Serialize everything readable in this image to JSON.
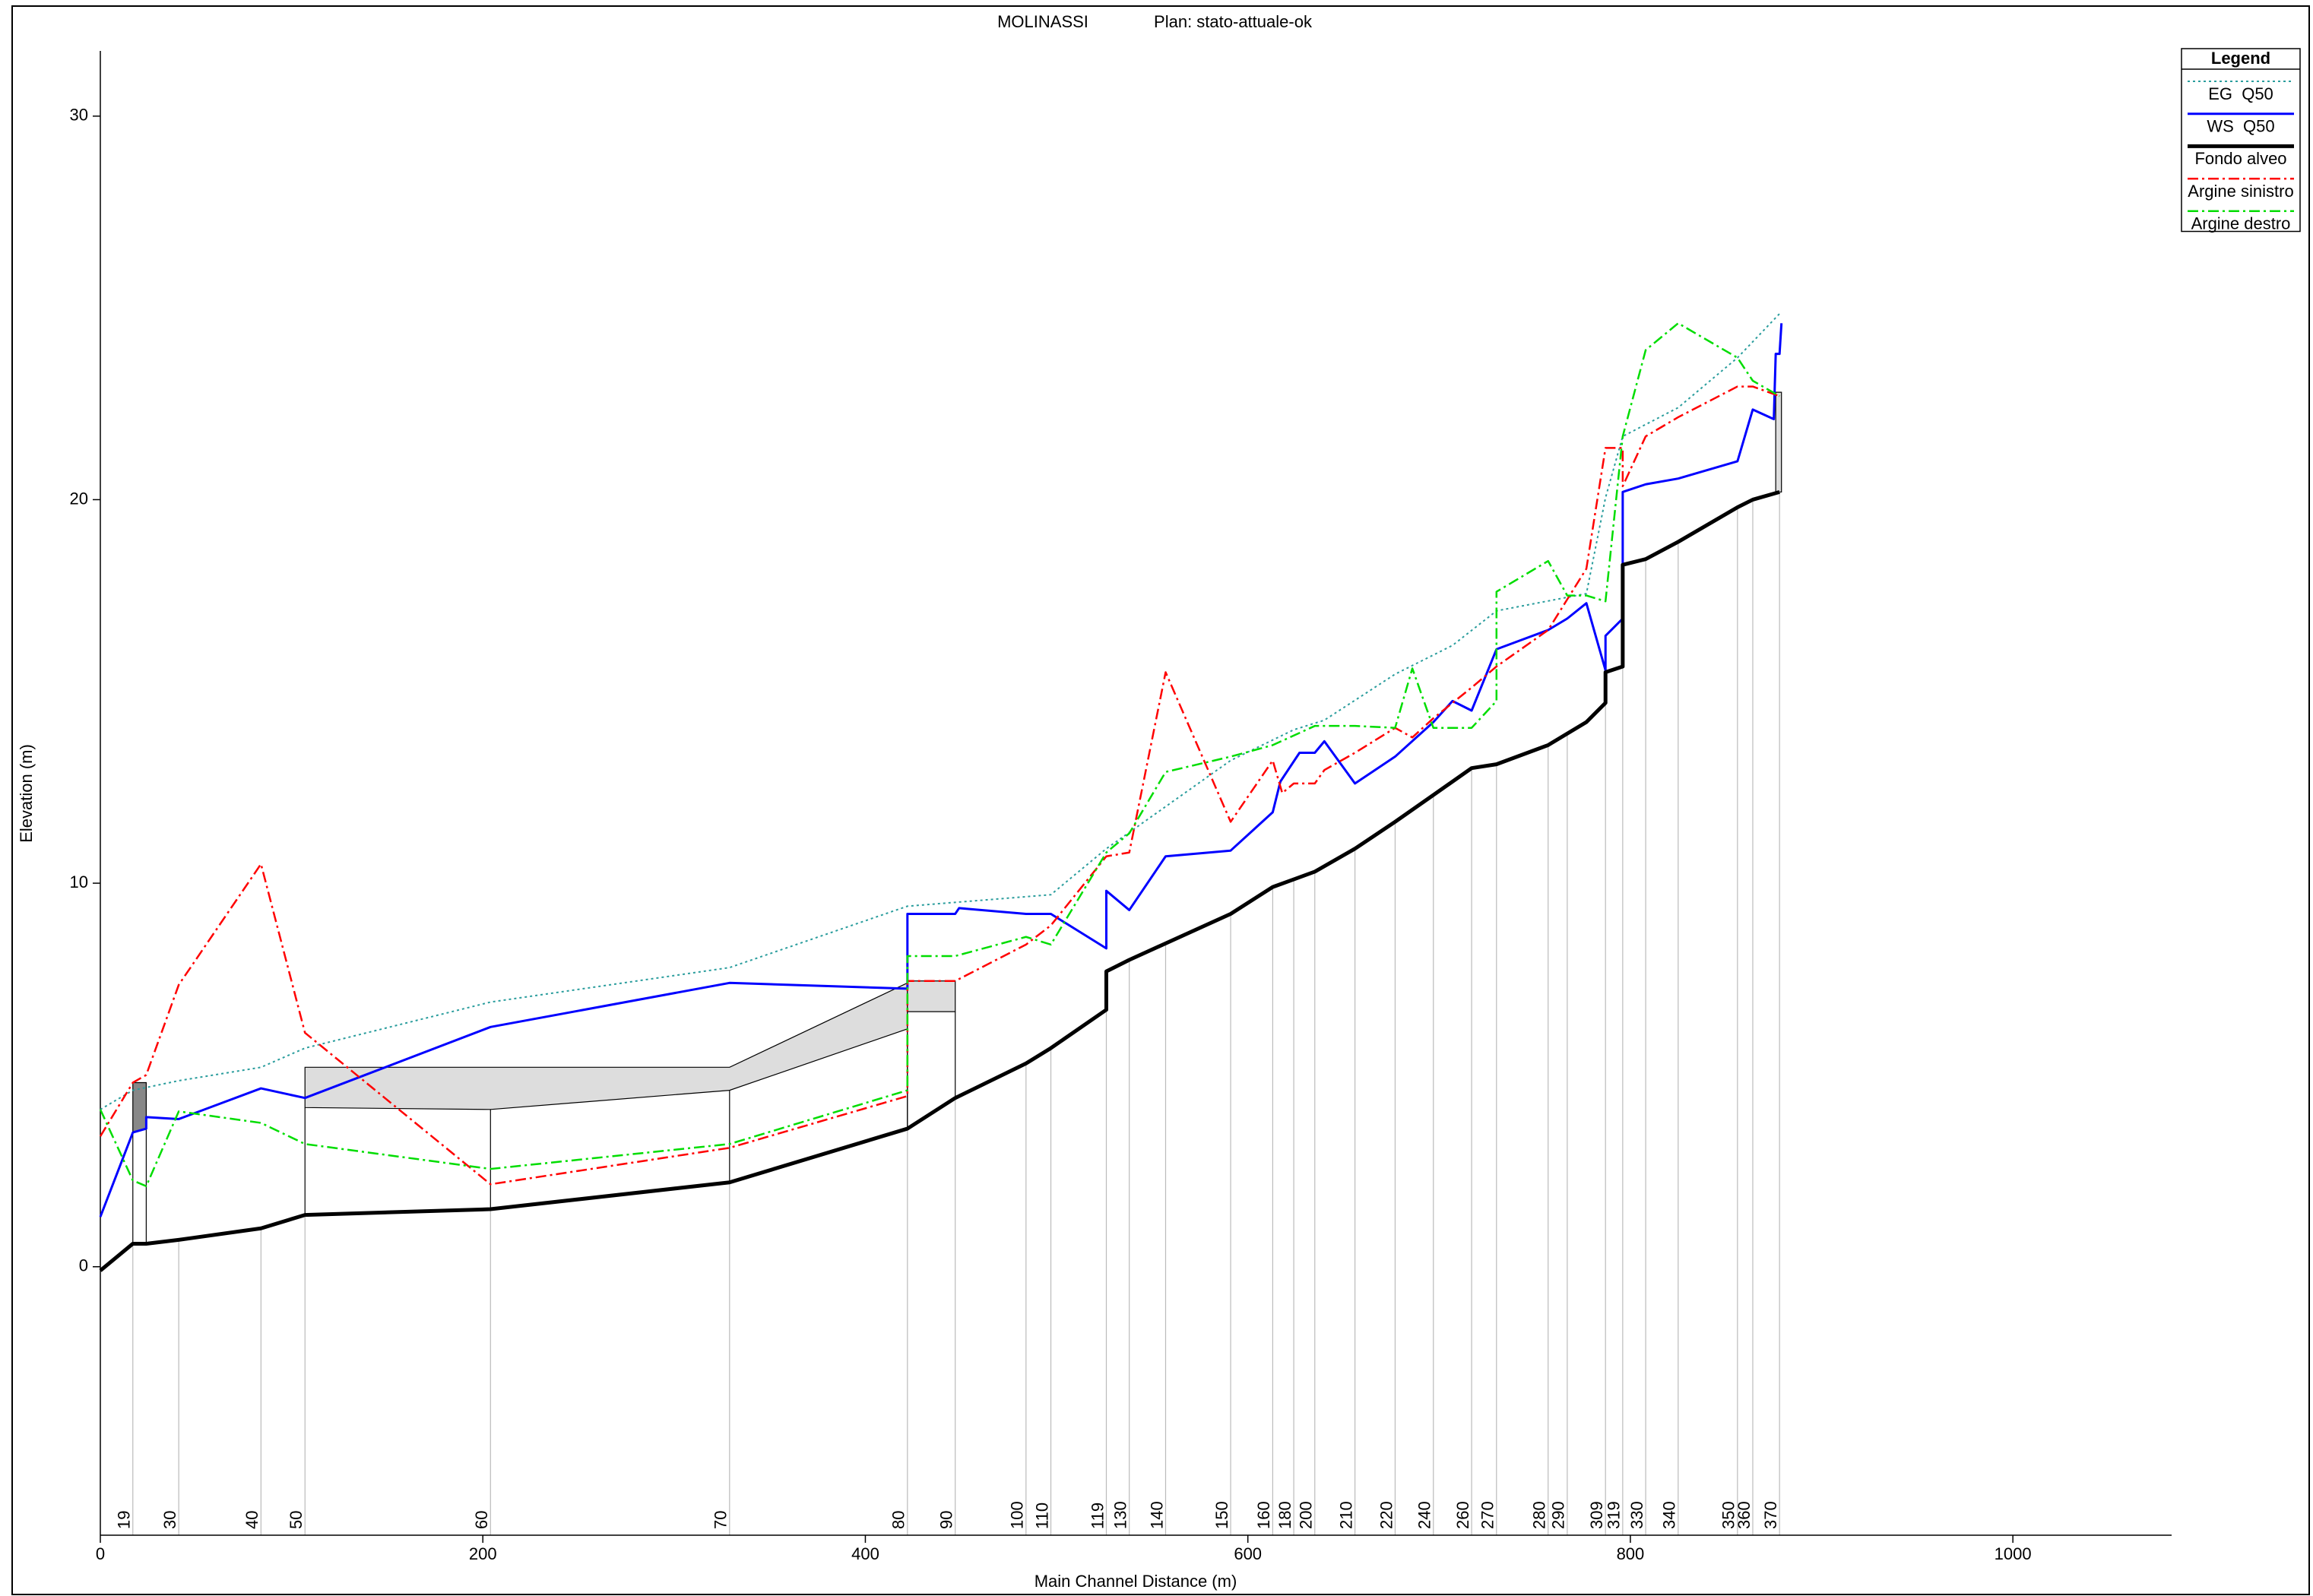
{
  "chart_data": {
    "type": "line",
    "title": "MOLINASSI",
    "subtitle": "Plan: stato-attuale-ok",
    "x_label": "Main Channel Distance (m)",
    "y_label": "Elevation (m)",
    "xlim": [
      0,
      1083
    ],
    "ylim": [
      -7,
      31.7
    ],
    "xticks": [
      0,
      200,
      400,
      600,
      800,
      1000
    ],
    "yticks": [
      0,
      10,
      20,
      30
    ],
    "legend_title": "Legend",
    "legend": "top-right",
    "series": [
      {
        "name": "EG  Q50",
        "color": "#2a9d9d",
        "style": "dotted",
        "width": 2,
        "x": [
          0,
          17,
          41,
          84,
          107,
          204,
          329,
          422,
          497,
          526,
          591,
          624,
          640,
          677,
          707,
          730,
          777,
          787,
          796,
          825,
          856,
          879
        ],
        "values": [
          4.1,
          4.6,
          4.85,
          5.2,
          5.7,
          6.9,
          7.8,
          9.4,
          9.7,
          10.9,
          13.2,
          14.0,
          14.25,
          15.45,
          16.2,
          17.1,
          17.55,
          20.05,
          21.65,
          22.4,
          23.7,
          24.9
        ]
      },
      {
        "name": "WS  Q50",
        "color": "#0000ff",
        "style": "solid",
        "width": 3,
        "x": [
          0,
          17,
          24,
          24,
          41,
          84,
          107,
          204,
          329,
          422,
          422,
          447,
          449,
          484,
          497,
          526,
          526,
          538,
          557,
          591,
          613,
          617,
          627,
          635,
          640,
          656,
          677,
          697,
          707,
          717,
          730,
          757,
          767,
          777,
          787,
          787,
          796,
          796,
          808,
          825,
          856,
          864,
          875,
          876,
          878,
          879
        ],
        "values": [
          1.3,
          3.5,
          3.6,
          3.9,
          3.85,
          4.65,
          4.4,
          6.25,
          7.4,
          7.25,
          9.2,
          9.2,
          9.35,
          9.2,
          9.2,
          8.3,
          9.8,
          9.3,
          10.7,
          10.85,
          11.85,
          12.65,
          13.4,
          13.4,
          13.7,
          12.6,
          13.3,
          14.2,
          14.75,
          14.5,
          16.1,
          16.6,
          16.9,
          17.3,
          15.55,
          16.45,
          16.9,
          20.2,
          20.4,
          20.55,
          21.0,
          22.35,
          22.1,
          23.8,
          23.8,
          24.6
        ]
      },
      {
        "name": "Fondo alveo",
        "color": "#000000",
        "style": "solid",
        "width": 5,
        "x": [
          0,
          17,
          24,
          41,
          84,
          107,
          204,
          329,
          422,
          447,
          484,
          497,
          526,
          526,
          538,
          591,
          613,
          624,
          635,
          656,
          677,
          697,
          717,
          730,
          757,
          767,
          777,
          787,
          787,
          796,
          796,
          808,
          825,
          856,
          864,
          878
        ],
        "values": [
          -0.1,
          0.6,
          0.6,
          0.7,
          1.0,
          1.35,
          1.5,
          2.2,
          3.6,
          4.4,
          5.3,
          5.7,
          6.7,
          7.7,
          8.0,
          9.2,
          9.9,
          10.1,
          10.3,
          10.9,
          11.6,
          12.3,
          13.0,
          13.1,
          13.6,
          13.9,
          14.2,
          14.7,
          15.5,
          15.65,
          18.3,
          18.45,
          18.9,
          19.8,
          20.0,
          20.2
        ]
      },
      {
        "name": "Argine sinistro",
        "color": "#ff0000",
        "style": "dashdot",
        "width": 2.5,
        "x": [
          0,
          17,
          24,
          41,
          84,
          107,
          204,
          329,
          422,
          422,
          447,
          484,
          497,
          526,
          538,
          557,
          591,
          613,
          618,
          624,
          635,
          640,
          656,
          677,
          686,
          697,
          717,
          730,
          757,
          767,
          777,
          787,
          796,
          796,
          808,
          825,
          856,
          864,
          878
        ],
        "values": [
          3.4,
          4.8,
          5.0,
          7.35,
          10.5,
          6.1,
          2.15,
          3.1,
          4.45,
          7.45,
          7.45,
          8.4,
          8.9,
          10.7,
          10.8,
          15.5,
          11.6,
          13.2,
          12.35,
          12.6,
          12.6,
          12.95,
          13.4,
          14.05,
          13.8,
          14.3,
          15.1,
          15.65,
          16.6,
          17.4,
          18.2,
          21.35,
          21.35,
          20.35,
          21.65,
          22.15,
          22.95,
          22.95,
          22.7
        ]
      },
      {
        "name": "Argine destro",
        "color": "#00dd00",
        "style": "dashdot",
        "width": 2.5,
        "x": [
          0,
          17,
          24,
          41,
          84,
          107,
          204,
          329,
          422,
          422,
          447,
          484,
          497,
          526,
          538,
          557,
          591,
          613,
          635,
          656,
          677,
          686,
          697,
          717,
          730,
          730,
          757,
          767,
          777,
          787,
          796,
          808,
          825,
          856,
          864,
          878
        ],
        "values": [
          4.1,
          2.25,
          2.1,
          4.05,
          3.75,
          3.2,
          2.55,
          3.2,
          4.6,
          8.1,
          8.1,
          8.6,
          8.4,
          10.8,
          11.3,
          12.9,
          13.3,
          13.6,
          14.1,
          14.1,
          14.05,
          15.6,
          14.05,
          14.05,
          14.75,
          17.6,
          18.4,
          17.5,
          17.5,
          17.35,
          21.65,
          23.9,
          24.6,
          23.7,
          23.1,
          22.7
        ]
      }
    ],
    "structures": [
      {
        "x": [
          17,
          24
        ],
        "top": [
          4.8,
          4.8
        ],
        "bottom": [
          3.5,
          3.6
        ],
        "color": "#888888"
      },
      {
        "x": [
          107,
          204,
          329,
          422
        ],
        "top": [
          5.2,
          5.2,
          5.2,
          7.4
        ],
        "bottom": [
          4.15,
          4.1,
          4.6,
          6.2
        ],
        "color": "#dddddd"
      },
      {
        "x": [
          422,
          447
        ],
        "top": [
          7.45,
          7.45
        ],
        "bottom": [
          6.65,
          6.65
        ],
        "color": "#dddddd"
      },
      {
        "x": [
          876,
          879
        ],
        "top": [
          22.8,
          22.8
        ],
        "bottom": [
          20.2,
          20.2
        ],
        "color": "#dddddd"
      }
    ],
    "stations": {
      "labels": [
        "19",
        "30",
        "40",
        "50",
        "60",
        "70",
        "80",
        "90",
        "100",
        "110",
        "119",
        "130",
        "140",
        "150",
        "160",
        "180",
        "200",
        "210",
        "220",
        "240",
        "260",
        "270",
        "280",
        "290",
        "309",
        "319",
        "330",
        "340",
        "350",
        "360",
        "370"
      ],
      "x": [
        17,
        41,
        84,
        107,
        204,
        329,
        422,
        447,
        484,
        497,
        526,
        538,
        557,
        591,
        613,
        624,
        635,
        656,
        677,
        697,
        717,
        730,
        757,
        767,
        787,
        796,
        808,
        825,
        856,
        864,
        878
      ]
    }
  }
}
